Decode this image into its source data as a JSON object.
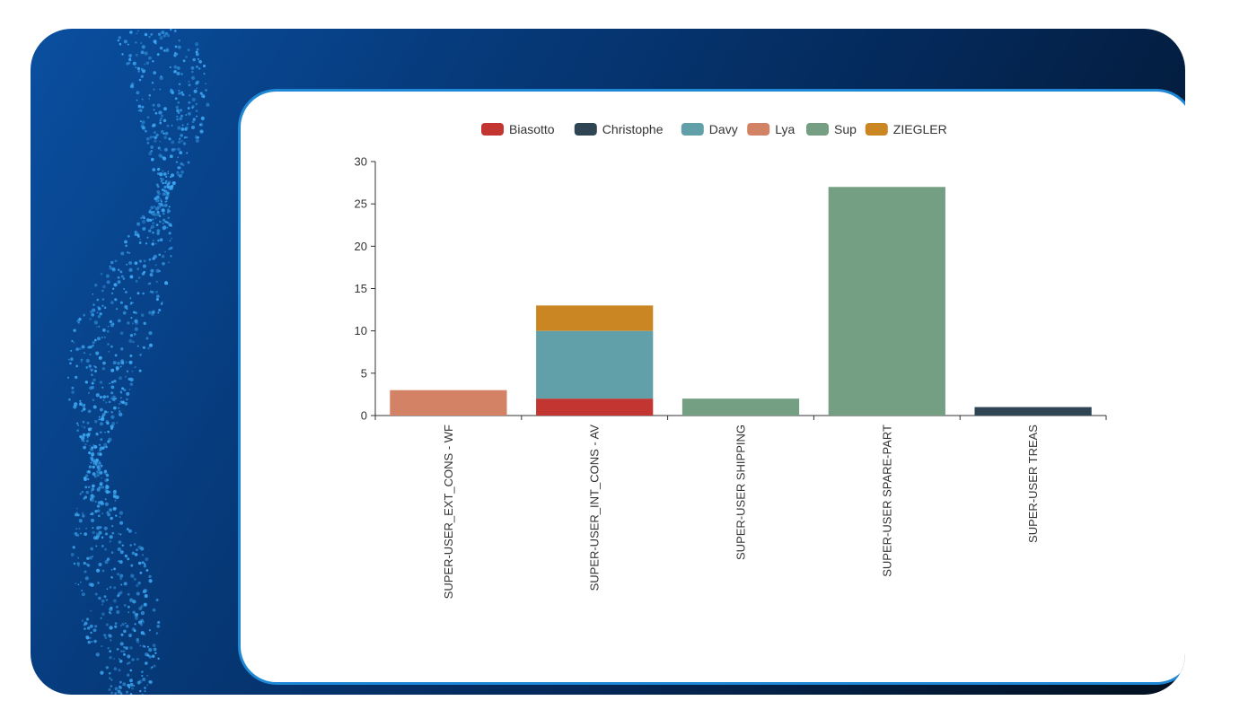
{
  "chart_data": {
    "type": "bar",
    "stacked": true,
    "categories": [
      "SUPER-USER_EXT_CONS - WF",
      "SUPER-USER_INT_CONS - AV",
      "SUPER-USER SHIPPING",
      "SUPER-USER SPARE-PART",
      "SUPER-USER TREAS"
    ],
    "series": [
      {
        "name": "Biasotto",
        "color": "#c23531",
        "values": [
          0,
          2,
          0,
          0,
          0
        ]
      },
      {
        "name": "Christophe",
        "color": "#2f4554",
        "values": [
          0,
          0,
          0,
          0,
          1
        ]
      },
      {
        "name": "Davy",
        "color": "#61a0a8",
        "values": [
          0,
          8,
          0,
          0,
          0
        ]
      },
      {
        "name": "Lya",
        "color": "#d48265",
        "values": [
          3,
          0,
          0,
          0,
          0
        ]
      },
      {
        "name": "Sup",
        "color": "#749f83",
        "values": [
          0,
          0,
          2,
          27,
          0
        ]
      },
      {
        "name": "ZIEGLER",
        "color": "#ca8622",
        "values": [
          0,
          3,
          0,
          0,
          0
        ]
      }
    ],
    "ylim": [
      0,
      30
    ],
    "yticks": [
      0,
      5,
      10,
      15,
      20,
      25,
      30
    ],
    "title": "",
    "xlabel": "",
    "ylabel": "",
    "legend_position": "top-center",
    "grid": false
  }
}
